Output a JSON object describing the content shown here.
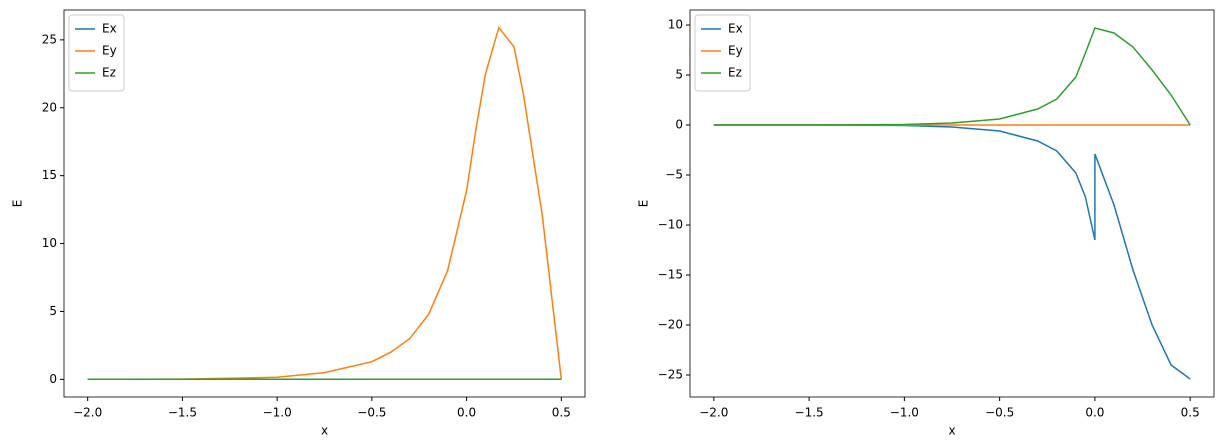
{
  "chart_data": [
    {
      "type": "line",
      "xlabel": "x",
      "ylabel": "E",
      "x": [
        -2,
        -1.5,
        -1,
        -0.75,
        -0.5,
        -0.4,
        -0.3,
        -0.2,
        -0.1,
        0,
        0.05,
        0.1,
        0.17,
        0.25,
        0.3,
        0.4,
        0.5
      ],
      "series": [
        {
          "name": "Ex",
          "color": "#1f77b4",
          "values": [
            0,
            0,
            0,
            0,
            0,
            0,
            0,
            0,
            0,
            0,
            0,
            0,
            0,
            0,
            0,
            0,
            0
          ]
        },
        {
          "name": "Ey",
          "color": "#ff7f0e",
          "values": [
            0,
            0.02,
            0.15,
            0.5,
            1.3,
            2.0,
            3.0,
            4.8,
            8.0,
            13.9,
            18.5,
            22.5,
            25.9,
            24.5,
            21.0,
            12.0,
            0
          ]
        },
        {
          "name": "Ez",
          "color": "#2ca02c",
          "values": [
            0,
            0,
            0,
            0,
            0,
            0,
            0,
            0,
            0,
            0,
            0,
            0,
            0,
            0,
            0,
            0,
            0
          ]
        }
      ],
      "xlim": [
        -2.125,
        0.625
      ],
      "xticks": [
        {
          "value": -2,
          "label": "−2.0"
        },
        {
          "value": -1.5,
          "label": "−1.5"
        },
        {
          "value": -1,
          "label": "−1.0"
        },
        {
          "value": -0.5,
          "label": "−0.5"
        },
        {
          "value": 0,
          "label": "0.0"
        },
        0.5
      ],
      "ylim": [
        -1.3,
        27.2
      ],
      "yticks": [
        0,
        5,
        10,
        15,
        20,
        25
      ],
      "legend": "upper-left"
    },
    {
      "type": "line",
      "xlabel": "x",
      "ylabel": "E",
      "x": [
        -2,
        -1.5,
        -1,
        -0.75,
        -0.5,
        -0.3,
        -0.2,
        -0.1,
        -0.05,
        0,
        0,
        0.1,
        0.2,
        0.3,
        0.4,
        0.5
      ],
      "series": [
        {
          "name": "Ex",
          "color": "#1f77b4",
          "values": [
            0,
            0,
            -0.05,
            -0.2,
            -0.6,
            -1.6,
            -2.6,
            -4.8,
            -7.2,
            -11.5,
            -2.9,
            -8.0,
            -14.5,
            -20.0,
            -24.0,
            -25.4
          ]
        },
        {
          "name": "Ey",
          "color": "#ff7f0e",
          "values": [
            0,
            0,
            0,
            0,
            0,
            0,
            0,
            0,
            0,
            0,
            0,
            0,
            0,
            0,
            0,
            0
          ]
        },
        {
          "name": "Ez",
          "color": "#2ca02c",
          "values": [
            0,
            0,
            0.05,
            0.2,
            0.6,
            1.6,
            2.6,
            4.8,
            7.2,
            9.7,
            9.7,
            9.2,
            7.8,
            5.5,
            3.0,
            0
          ]
        }
      ],
      "xlim": [
        -2.125,
        0.625
      ],
      "xticks": [
        {
          "value": -2,
          "label": "−2.0"
        },
        {
          "value": -1.5,
          "label": "−1.5"
        },
        {
          "value": -1,
          "label": "−1.0"
        },
        {
          "value": -0.5,
          "label": "−0.5"
        },
        {
          "value": 0,
          "label": "0.0"
        },
        0.5
      ],
      "ylim": [
        -27.2,
        11.5
      ],
      "yticks": [
        {
          "value": -25,
          "label": "−25"
        },
        {
          "value": -20,
          "label": "−20"
        },
        {
          "value": -15,
          "label": "−15"
        },
        {
          "value": -10,
          "label": "−10"
        },
        {
          "value": -5,
          "label": "−5"
        },
        0,
        5,
        10
      ],
      "legend": "upper-left"
    }
  ]
}
